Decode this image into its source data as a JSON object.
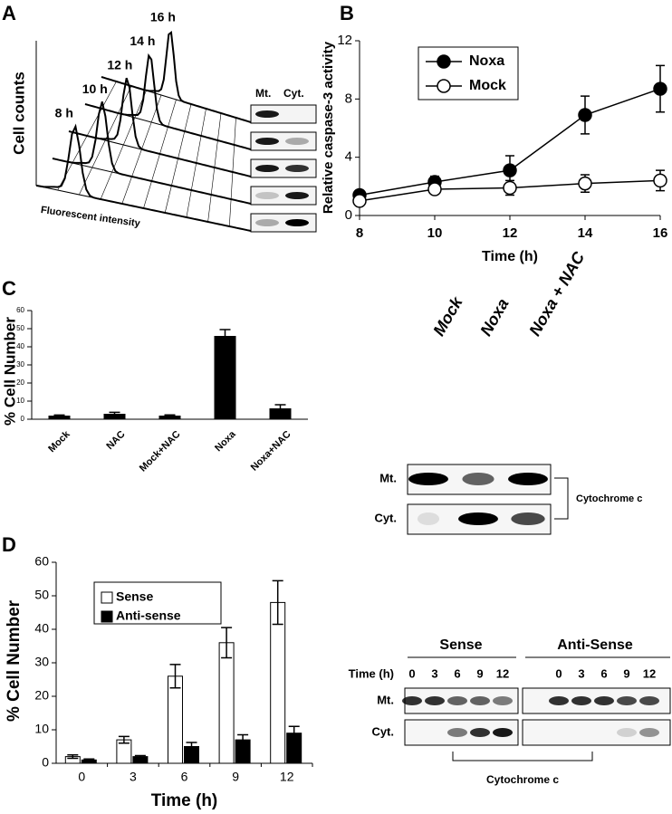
{
  "panel_labels": [
    "A",
    "B",
    "C",
    "D"
  ],
  "panel_a": {
    "y_label": "Cell counts",
    "x_label": "Fluorescent intensity",
    "times": [
      "8 h",
      "10 h",
      "12 h",
      "14 h",
      "16 h"
    ],
    "blot_columns": [
      "Mt.",
      "Cyt."
    ]
  },
  "chart_data": [
    {
      "type": "line",
      "y_label": "Relative caspase-3 activity",
      "x_label": "Time (h)",
      "x": [
        8,
        10,
        12,
        14,
        16
      ],
      "xlim": [
        8,
        16
      ],
      "xticks": [
        8,
        10,
        12,
        14,
        16
      ],
      "ylim": [
        0,
        12
      ],
      "yticks": [
        0,
        4,
        8,
        12
      ],
      "legend": "upper left",
      "series": [
        {
          "name": "Noxa",
          "color": "#000000",
          "values": [
            1.4,
            2.3,
            3.1,
            6.9,
            8.7
          ],
          "errors": [
            0.2,
            0.4,
            1.0,
            1.3,
            1.6
          ]
        },
        {
          "name": "Mock",
          "color": "#ffffff",
          "values": [
            1.0,
            1.8,
            1.9,
            2.2,
            2.4
          ],
          "errors": [
            0.2,
            0.3,
            0.5,
            0.6,
            0.7
          ]
        }
      ]
    },
    {
      "type": "bar",
      "y_label": "% Cell Number",
      "categories": [
        "Mock",
        "NAC",
        "Mock+NAC",
        "Noxa",
        "Noxa+NAC"
      ],
      "values": [
        2,
        3,
        2,
        46,
        6
      ],
      "errors": [
        0.3,
        0.8,
        0.4,
        3.5,
        2
      ],
      "color": "#000000",
      "ylim": [
        0,
        60
      ],
      "yticks": [
        0,
        10,
        20,
        30,
        40,
        50,
        60
      ]
    },
    {
      "type": "grouped-bar",
      "y_label": "% Cell Number",
      "x_label": "Time (h)",
      "categories": [
        "0",
        "3",
        "6",
        "9",
        "12"
      ],
      "legend": "upper left",
      "ylim": [
        0,
        60
      ],
      "yticks": [
        0,
        10,
        20,
        30,
        40,
        50,
        60
      ],
      "series": [
        {
          "name": "Sense",
          "color": "#ffffff",
          "values": [
            2,
            7,
            26,
            36,
            48
          ],
          "errors": [
            0.5,
            1,
            3.5,
            4.5,
            6.5
          ]
        },
        {
          "name": "Anti-sense",
          "color": "#000000",
          "values": [
            1,
            2,
            5,
            7,
            9
          ],
          "errors": [
            0.3,
            0.3,
            1.2,
            1.5,
            2
          ]
        }
      ]
    }
  ],
  "panel_c_blot": {
    "lanes": [
      "Mock",
      "Noxa",
      "Noxa + NAC"
    ],
    "rows": [
      "Mt.",
      "Cyt."
    ],
    "label": "Cytochrome c"
  },
  "panel_d_blot": {
    "groups": [
      "Sense",
      "Anti-Sense"
    ],
    "time_label": "Time (h)",
    "times": [
      "0",
      "3",
      "6",
      "9",
      "12",
      "0",
      "3",
      "6",
      "9",
      "12"
    ],
    "rows": [
      "Mt.",
      "Cyt."
    ],
    "label": "Cytochrome c"
  }
}
